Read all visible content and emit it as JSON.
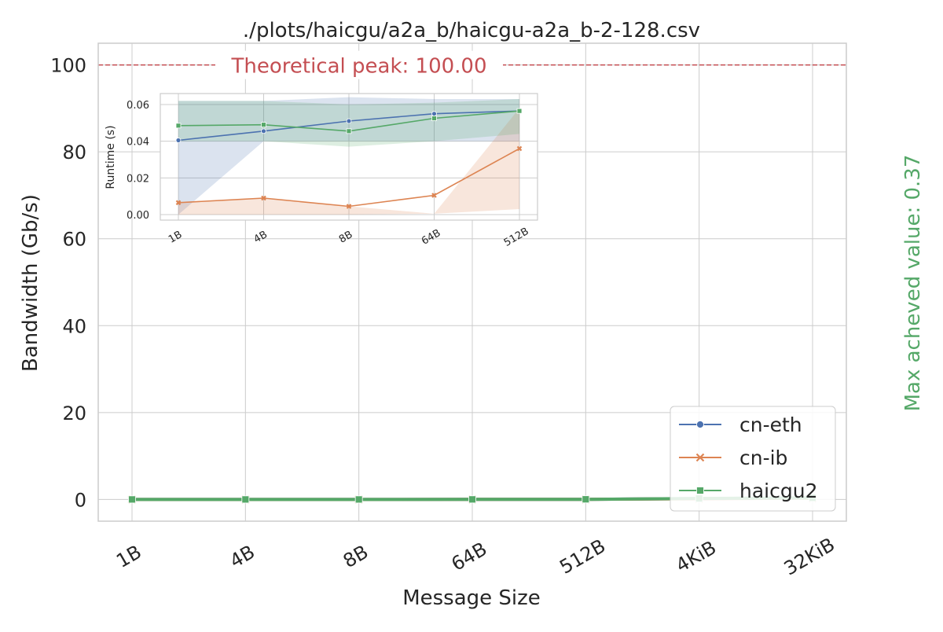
{
  "chart_data": [
    {
      "type": "line",
      "title": "./plots/haicgu/a2a_b/haicgu-a2a_b-2-128.csv",
      "xlabel": "Message Size",
      "ylabel": "Bandwidth (Gb/s)",
      "categories": [
        "1B",
        "4B",
        "8B",
        "64B",
        "512B",
        "4KiB",
        "32KiB"
      ],
      "ylim": [
        -5,
        105
      ],
      "yticks": [
        0,
        20,
        40,
        60,
        80,
        100
      ],
      "grid": true,
      "legend_position": "bottom-right",
      "series": [
        {
          "name": "cn-eth",
          "color": "#4c72b0",
          "marker": "circle",
          "values": [
            0.0,
            0.0,
            0.0,
            0.01,
            0.02,
            0.2,
            0.35
          ]
        },
        {
          "name": "cn-ib",
          "color": "#dd8452",
          "marker": "x",
          "values": [
            0.0,
            0.0,
            0.0,
            0.01,
            0.02,
            0.15,
            0.3
          ]
        },
        {
          "name": "haicgu2",
          "color": "#55a868",
          "marker": "square",
          "values": [
            0.0,
            0.0,
            0.0,
            0.01,
            0.03,
            0.22,
            0.37
          ]
        }
      ],
      "peak": {
        "value": 100,
        "label": "Theoretical peak: 100.00",
        "color": "#c44e52"
      },
      "side_annotation": {
        "text": "Max acheved value: 0.37",
        "color": "#55a868"
      }
    },
    {
      "type": "line",
      "title": "",
      "xlabel": "",
      "ylabel": "Runtime (s)",
      "categories": [
        "1B",
        "4B",
        "8B",
        "64B",
        "512B"
      ],
      "ylim": [
        -0.003,
        0.066
      ],
      "yticks": [
        0.0,
        0.02,
        0.04,
        0.06
      ],
      "ytick_labels": [
        "0.00",
        "0.02",
        "0.04",
        "0.06"
      ],
      "grid": true,
      "series": [
        {
          "name": "cn-eth",
          "color": "#4c72b0",
          "marker": "circle",
          "values": [
            0.0405,
            0.0455,
            0.051,
            0.055,
            0.0565
          ],
          "band_low": [
            0.0,
            0.04,
            0.04,
            0.04,
            0.04
          ],
          "band_high": [
            0.062,
            0.062,
            0.064,
            0.063,
            0.063
          ]
        },
        {
          "name": "cn-ib",
          "color": "#dd8452",
          "marker": "x",
          "values": [
            0.0065,
            0.009,
            0.0045,
            0.0105,
            0.036
          ],
          "band_low": [
            0.0,
            0.0,
            0.0,
            0.0005,
            0.003
          ],
          "band_high": [
            0.0065,
            0.009,
            0.0045,
            0.0005,
            0.058
          ]
        },
        {
          "name": "haicgu2",
          "color": "#55a868",
          "marker": "square",
          "values": [
            0.0485,
            0.049,
            0.0455,
            0.0525,
            0.0565
          ],
          "band_low": [
            0.04,
            0.04,
            0.037,
            0.04,
            0.044
          ],
          "band_high": [
            0.062,
            0.062,
            0.06,
            0.061,
            0.063
          ]
        }
      ]
    }
  ]
}
